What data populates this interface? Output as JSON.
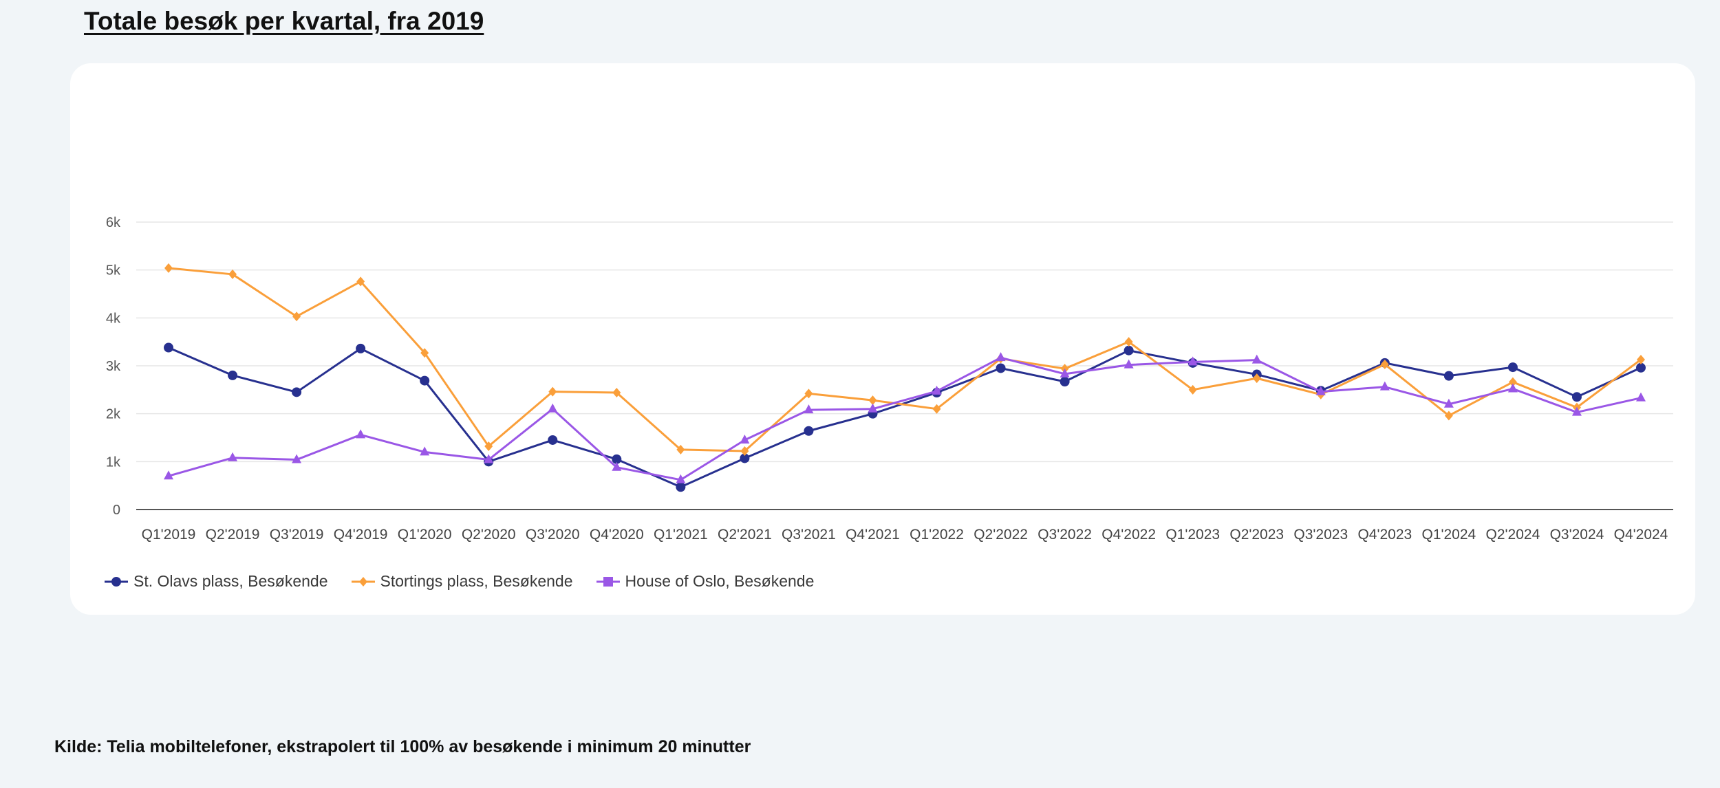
{
  "page": {
    "title": "Totale besøk per kvartal, fra 2019",
    "source": "Kilde: Telia mobiltelefoner, ekstrapolert til 100% av besøkende i minimum 20 minutter"
  },
  "chart_data": {
    "type": "line",
    "title": "",
    "xlabel": "",
    "ylabel": "",
    "ylim": [
      0,
      6000
    ],
    "yticks": [
      {
        "value": 0,
        "label": "0"
      },
      {
        "value": 1000,
        "label": "1k"
      },
      {
        "value": 2000,
        "label": "2k"
      },
      {
        "value": 3000,
        "label": "3k"
      },
      {
        "value": 4000,
        "label": "4k"
      },
      {
        "value": 5000,
        "label": "5k"
      },
      {
        "value": 6000,
        "label": "6k"
      }
    ],
    "grid": true,
    "legend_position": "bottom-left",
    "categories": [
      "Q1'2019",
      "Q2'2019",
      "Q3'2019",
      "Q4'2019",
      "Q1'2020",
      "Q2'2020",
      "Q3'2020",
      "Q4'2020",
      "Q1'2021",
      "Q2'2021",
      "Q3'2021",
      "Q4'2021",
      "Q1'2022",
      "Q2'2022",
      "Q3'2022",
      "Q4'2022",
      "Q1'2023",
      "Q2'2023",
      "Q3'2023",
      "Q4'2023",
      "Q1'2024",
      "Q2'2024",
      "Q3'2024",
      "Q4'2024"
    ],
    "series": [
      {
        "name": "St. Olavs plass, Besøkende",
        "color": "#27308f",
        "marker": "circle",
        "values": [
          3380,
          2800,
          2450,
          3360,
          2690,
          1000,
          1450,
          1050,
          470,
          1070,
          1640,
          2000,
          2440,
          2950,
          2670,
          3320,
          3060,
          2820,
          2480,
          3060,
          2790,
          2970,
          2350,
          2960
        ]
      },
      {
        "name": "Stortings plass, Besøkende",
        "color": "#fa9f3a",
        "marker": "diamond",
        "values": [
          5040,
          4910,
          4030,
          4760,
          3270,
          1320,
          2460,
          2440,
          1250,
          1220,
          2420,
          2280,
          2100,
          3150,
          2940,
          3500,
          2500,
          2740,
          2400,
          3030,
          1960,
          2660,
          2130,
          3130
        ]
      },
      {
        "name": "House of Oslo, Besøkende",
        "color": "#9a57e6",
        "marker": "triangle",
        "values": [
          700,
          1080,
          1040,
          1560,
          1200,
          1040,
          2100,
          880,
          620,
          1450,
          2080,
          2100,
          2470,
          3170,
          2830,
          3020,
          3080,
          3120,
          2460,
          2560,
          2200,
          2520,
          2030,
          2330
        ]
      }
    ]
  }
}
